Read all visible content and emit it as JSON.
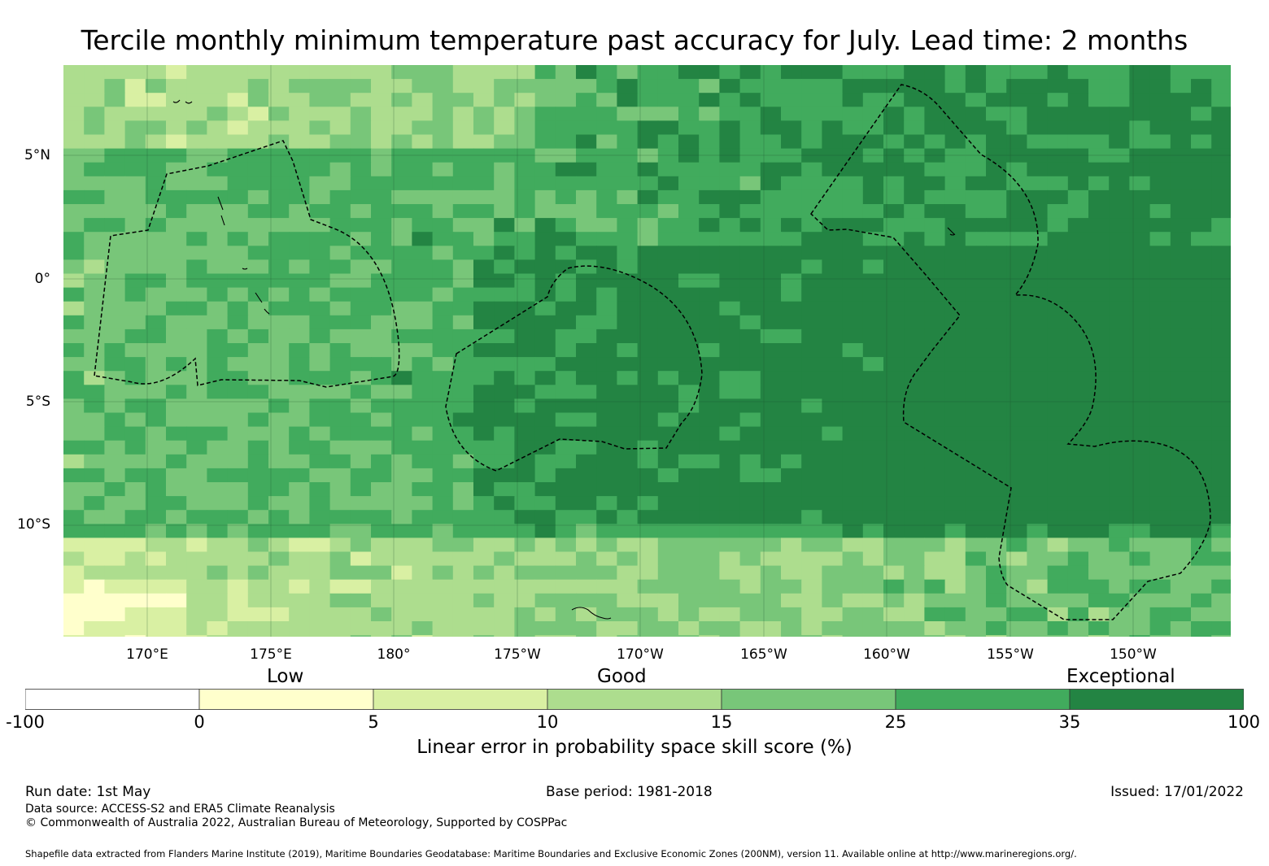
{
  "title": "Tercile monthly minimum temperature past accuracy for July. Lead time: 2 months",
  "map": {
    "lat_labels": [
      "5°N",
      "0°",
      "5°S",
      "10°S"
    ],
    "lon_labels": [
      "170°E",
      "175°E",
      "180°",
      "175°W",
      "170°W",
      "165°W",
      "160°W",
      "155°W",
      "150°W"
    ],
    "categories": [
      "Low",
      "Good",
      "Exceptional"
    ]
  },
  "legend": {
    "ticks": [
      "-100",
      "0",
      "5",
      "10",
      "15",
      "25",
      "35",
      "100"
    ],
    "colors": [
      "#ffffff",
      "#ffffcc",
      "#d9f0a3",
      "#addd8e",
      "#78c679",
      "#41ab5d",
      "#238443"
    ],
    "title": "Linear error in probability space skill score (%)"
  },
  "footer": {
    "run_date": "Run date: 1st May",
    "base_period": "Base period: 1981-2018",
    "issued": "Issued: 17/01/2022",
    "data_source": "Data source: ACCESS-S2 and ERA5 Climate Reanalysis",
    "copyright": "© Commonwealth of Australia 2022, Australian Bureau of Meteorology, Supported by COSPPac",
    "shapefile": "Shapefile data extracted from Flanders Marine Institute (2019), Maritime Boundaries Geodatabase: Maritime Boundaries and Exclusive Economic Zones (200NM), version 11. Available online at http://www.marineregions.org/."
  }
}
